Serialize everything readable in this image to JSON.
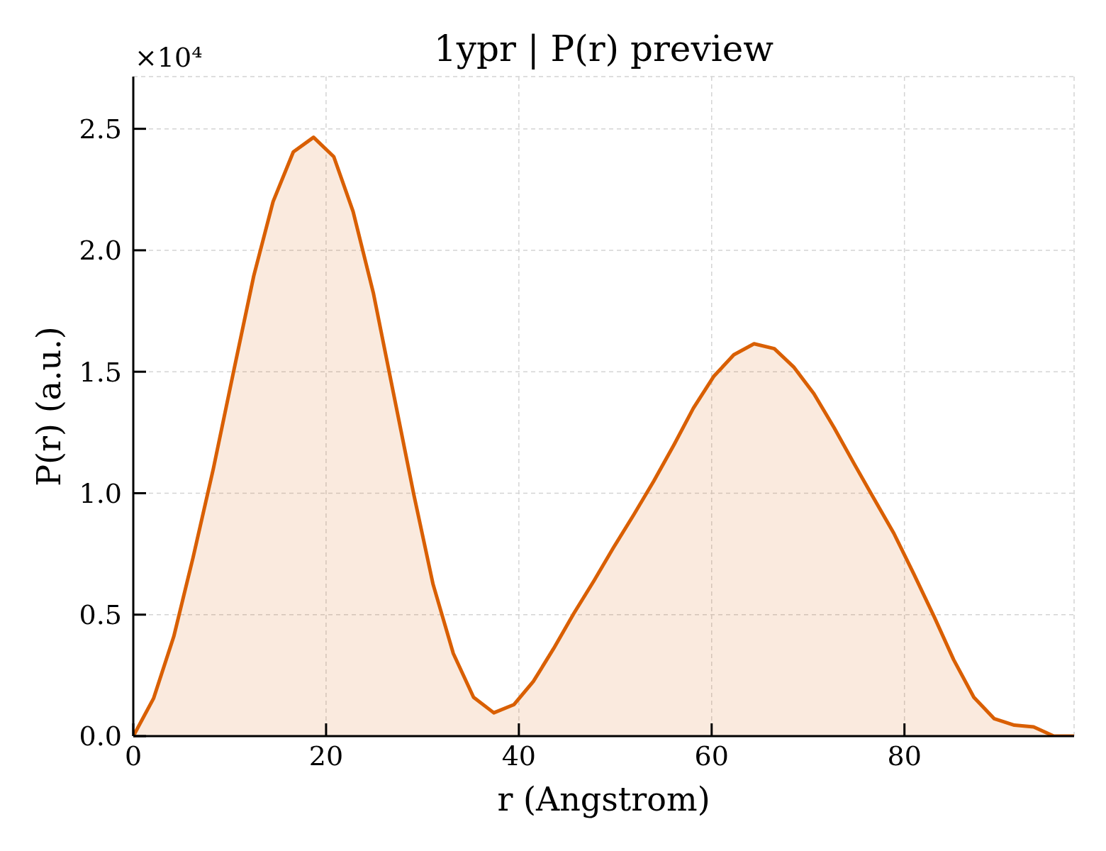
{
  "chart_data": {
    "type": "area",
    "title": "1ypr | P(r) preview",
    "xlabel": "r (Angstrom)",
    "ylabel": "P(r) (a.u.)",
    "annotations": [
      "×10⁴"
    ],
    "x": [
      0,
      2.1,
      4.2,
      6.2,
      8.3,
      10.4,
      12.5,
      14.5,
      16.6,
      18.7,
      20.8,
      22.8,
      24.9,
      27.0,
      29.1,
      31.1,
      33.2,
      35.3,
      37.4,
      39.5,
      41.5,
      43.6,
      45.7,
      47.8,
      49.8,
      51.9,
      54.0,
      56.1,
      58.1,
      60.2,
      62.3,
      64.4,
      66.5,
      68.5,
      70.6,
      72.7,
      74.8,
      76.8,
      78.9,
      81.0,
      83.1,
      85.1,
      87.2,
      89.3,
      91.4,
      93.4,
      95.5,
      97.6
    ],
    "series": [
      {
        "color": "#d95f02",
        "values": [
          0,
          0.155,
          0.41,
          0.735,
          1.1,
          1.5,
          1.895,
          2.2,
          2.405,
          2.465,
          2.385,
          2.16,
          1.825,
          1.41,
          0.995,
          0.625,
          0.34,
          0.16,
          0.096,
          0.13,
          0.225,
          0.36,
          0.505,
          0.64,
          0.775,
          0.91,
          1.05,
          1.2,
          1.35,
          1.48,
          1.57,
          1.615,
          1.595,
          1.52,
          1.41,
          1.27,
          1.12,
          0.98,
          0.835,
          0.665,
          0.49,
          0.315,
          0.16,
          0.072,
          0.045,
          0.038,
          0,
          0
        ]
      }
    ],
    "xlim": [
      0,
      97.6
    ],
    "ylim": [
      0,
      2.715
    ],
    "xticks": [
      0,
      20,
      40,
      60,
      80
    ],
    "yticks": [
      {
        "value": 0,
        "label": "0.0"
      },
      0.5,
      {
        "value": 1,
        "label": "1.0"
      },
      1.5,
      {
        "value": 2,
        "label": "2.0"
      },
      2.5
    ],
    "grid": true
  }
}
